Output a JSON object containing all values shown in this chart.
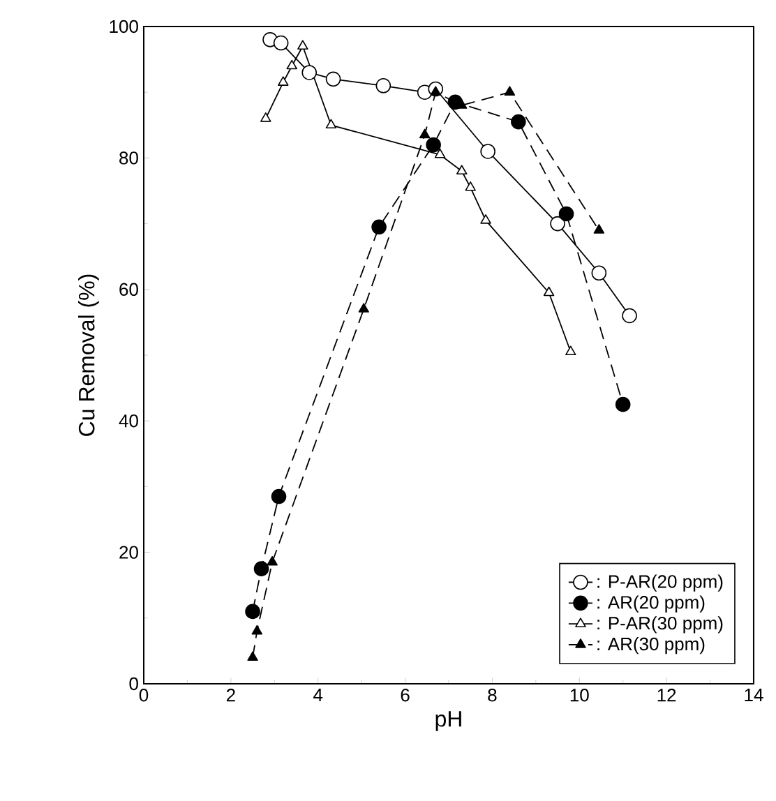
{
  "chart_data": {
    "type": "line",
    "xlabel": "pH",
    "ylabel": "Cu  Removal (%)",
    "xlim": [
      0,
      14
    ],
    "ylim": [
      0,
      100
    ],
    "xticks": [
      0,
      2,
      4,
      6,
      8,
      10,
      12,
      14
    ],
    "yticks": [
      0,
      20,
      40,
      60,
      80,
      100
    ],
    "grid": false,
    "legend": "bottom right",
    "series": [
      {
        "name": ": P-AR(20 ppm)",
        "color": "#000000",
        "marker": "circle",
        "line_style": "solid",
        "x": [
          2.9,
          3.15,
          3.8,
          4.35,
          5.5,
          6.45,
          6.7,
          7.9,
          9.5,
          10.45,
          11.15
        ],
        "values": [
          98,
          97.5,
          93,
          92,
          91,
          90,
          90.5,
          81,
          70,
          62.5,
          56
        ]
      },
      {
        "name": ": AR(20 ppm)",
        "color": "#000000",
        "marker": "circle",
        "line_style": "dashed",
        "x": [
          2.5,
          2.7,
          3.1,
          5.4,
          6.65,
          7.15,
          8.6,
          9.7,
          11.0
        ],
        "values": [
          11,
          17.5,
          28.5,
          69.5,
          82,
          88.5,
          85.5,
          71.5,
          42.5
        ]
      },
      {
        "name": ": P-AR(30 ppm)",
        "color": "#000000",
        "marker": "triangle",
        "line_style": "solid",
        "x": [
          2.8,
          3.2,
          3.4,
          3.65,
          4.3,
          6.8,
          7.3,
          7.5,
          7.85,
          9.3,
          9.8
        ],
        "values": [
          86,
          91.5,
          94,
          97,
          85,
          80.5,
          78,
          75.5,
          70.5,
          59.5,
          50.5
        ]
      },
      {
        "name": ": AR(30 ppm)",
        "color": "#000000",
        "marker": "triangle",
        "line_style": "dashed",
        "x": [
          2.5,
          2.6,
          2.95,
          5.05,
          6.45,
          6.7,
          7.3,
          8.4,
          10.45
        ],
        "values": [
          4,
          8,
          18.5,
          57,
          83.5,
          90,
          88,
          90,
          69
        ]
      }
    ]
  }
}
